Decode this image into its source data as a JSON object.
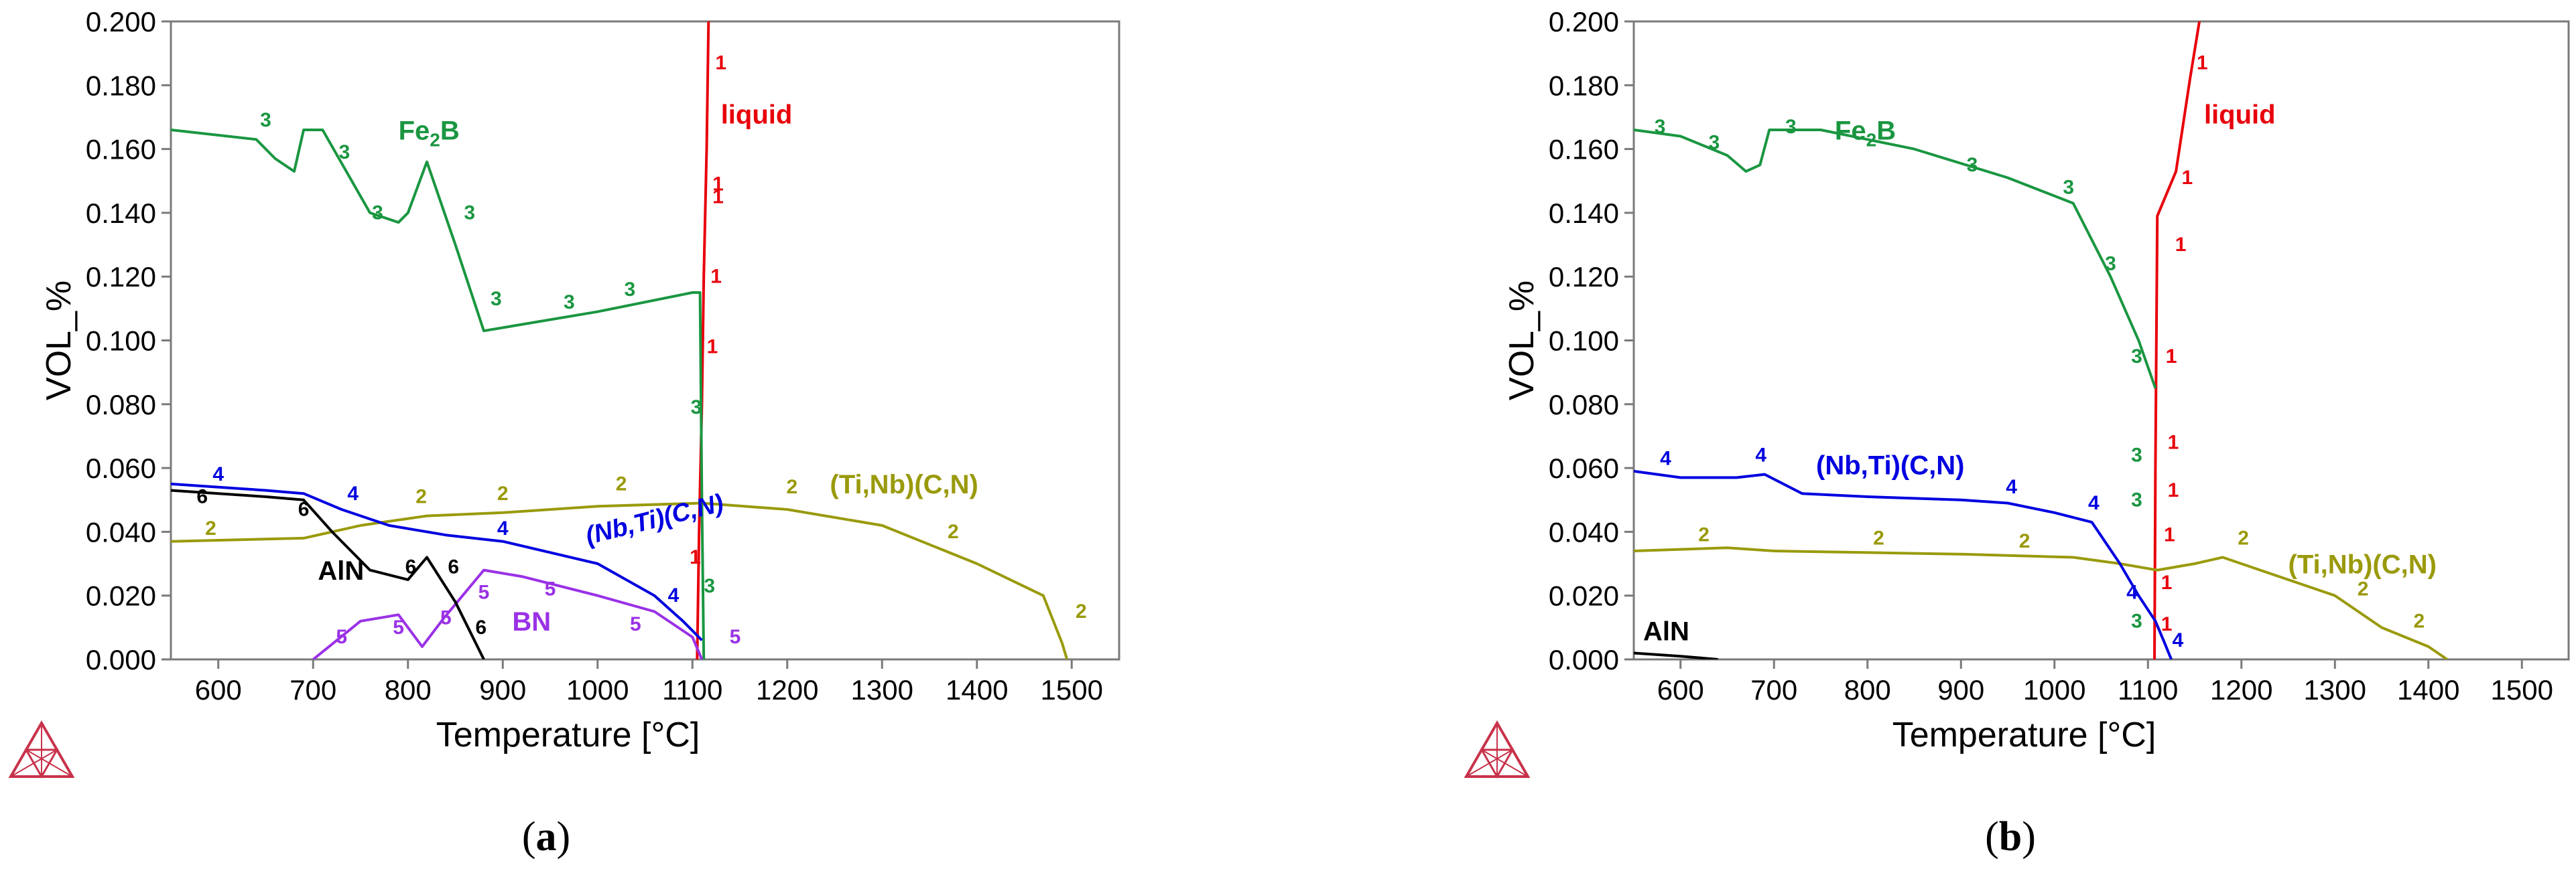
{
  "colors": {
    "liquid": "#e8000b",
    "fe2b": "#1a9641",
    "tinb": "#9a9a0c",
    "nbti": "#0000e0",
    "bn": "#9a31e6",
    "aln": "#000000"
  },
  "logo_icon": "thermo-calc-triangle-icon",
  "chart_data": [
    {
      "type": "line",
      "panel_label": "a",
      "xlabel": "Temperature [°C]",
      "ylabel": "VOL_%",
      "xlim": [
        550,
        1550
      ],
      "ylim": [
        0,
        0.2
      ],
      "x_ticks": [
        600,
        700,
        800,
        900,
        1000,
        1100,
        1200,
        1300,
        1400,
        1500
      ],
      "y_ticks": [
        "0.000",
        "0.020",
        "0.040",
        "0.060",
        "0.080",
        "0.100",
        "0.120",
        "0.140",
        "0.160",
        "0.180",
        "0.200"
      ],
      "series": [
        {
          "id": "liquid",
          "name": "liquid",
          "color": "liquid",
          "marker": "1",
          "name_xy": [
            1130,
            0.168
          ],
          "points": [
            [
              1105,
              0
            ],
            [
              1107,
              0.04
            ],
            [
              1110,
              0.08
            ],
            [
              1112,
              0.12
            ],
            [
              1115,
              0.16
            ],
            [
              1117,
              0.2
            ]
          ],
          "marker_xy": [
            [
              1130,
              0.185
            ],
            [
              1127,
              0.147
            ],
            [
              1127,
              0.143
            ],
            [
              1125,
              0.118
            ],
            [
              1121,
              0.096
            ],
            [
              1103,
              0.03
            ]
          ]
        },
        {
          "id": "fe2b",
          "name": "Fe2B",
          "color": "fe2b",
          "marker": "3",
          "name_xy": [
            790,
            0.163
          ],
          "points": [
            [
              550,
              0.166
            ],
            [
              640,
              0.163
            ],
            [
              660,
              0.157
            ],
            [
              680,
              0.153
            ],
            [
              690,
              0.166
            ],
            [
              710,
              0.166
            ],
            [
              760,
              0.14
            ],
            [
              790,
              0.137
            ],
            [
              800,
              0.14
            ],
            [
              820,
              0.156
            ],
            [
              850,
              0.13
            ],
            [
              880,
              0.103
            ],
            [
              1000,
              0.109
            ],
            [
              1100,
              0.115
            ],
            [
              1108,
              0.115
            ],
            [
              1110,
              0.05
            ],
            [
              1112,
              0
            ]
          ],
          "marker_xy": [
            [
              650,
              0.167
            ],
            [
              733,
              0.157
            ],
            [
              768,
              0.138
            ],
            [
              865,
              0.138
            ],
            [
              893,
              0.111
            ],
            [
              970,
              0.11
            ],
            [
              1034,
              0.114
            ],
            [
              1104,
              0.077
            ],
            [
              1118,
              0.021
            ]
          ]
        },
        {
          "id": "tinb",
          "name": "(Ti,Nb)(C,N)",
          "color": "tinb",
          "marker": "2",
          "name_xy": [
            1245,
            0.052
          ],
          "points": [
            [
              550,
              0.037
            ],
            [
              690,
              0.038
            ],
            [
              750,
              0.042
            ],
            [
              820,
              0.045
            ],
            [
              900,
              0.046
            ],
            [
              1000,
              0.048
            ],
            [
              1110,
              0.049
            ],
            [
              1200,
              0.047
            ],
            [
              1300,
              0.042
            ],
            [
              1400,
              0.03
            ],
            [
              1470,
              0.02
            ],
            [
              1490,
              0.005
            ],
            [
              1495,
              0
            ]
          ],
          "marker_xy": [
            [
              592,
              0.039
            ],
            [
              814,
              0.049
            ],
            [
              900,
              0.05
            ],
            [
              1025,
              0.053
            ],
            [
              1205,
              0.052
            ],
            [
              1375,
              0.038
            ],
            [
              1510,
              0.013
            ]
          ]
        },
        {
          "id": "nbti",
          "name": "(Nb,Ti)(C,N)",
          "color": "nbti",
          "marker": "4",
          "name_xy": [
            990,
            0.036
          ],
          "name_rotate": -14,
          "name_italic": true,
          "points": [
            [
              550,
              0.055
            ],
            [
              650,
              0.053
            ],
            [
              690,
              0.052
            ],
            [
              730,
              0.047
            ],
            [
              780,
              0.042
            ],
            [
              840,
              0.039
            ],
            [
              900,
              0.037
            ],
            [
              1000,
              0.03
            ],
            [
              1060,
              0.02
            ],
            [
              1090,
              0.012
            ],
            [
              1110,
              0.006
            ]
          ],
          "marker_xy": [
            [
              600,
              0.056
            ],
            [
              742,
              0.05
            ],
            [
              900,
              0.039
            ],
            [
              1080,
              0.018
            ]
          ]
        },
        {
          "id": "bn",
          "name": "BN",
          "color": "bn",
          "marker": "5",
          "name_xy": [
            910,
            0.009
          ],
          "points": [
            [
              700,
              0
            ],
            [
              750,
              0.012
            ],
            [
              790,
              0.014
            ],
            [
              815,
              0.004
            ],
            [
              838,
              0.013
            ],
            [
              880,
              0.028
            ],
            [
              920,
              0.026
            ],
            [
              1000,
              0.02
            ],
            [
              1060,
              0.015
            ],
            [
              1100,
              0.007
            ],
            [
              1110,
              0
            ]
          ],
          "marker_xy": [
            [
              730,
              0.005
            ],
            [
              790,
              0.008
            ],
            [
              840,
              0.011
            ],
            [
              880,
              0.019
            ],
            [
              950,
              0.02
            ],
            [
              1040,
              0.009
            ],
            [
              1145,
              0.005
            ]
          ]
        },
        {
          "id": "aln",
          "name": "AlN",
          "color": "aln",
          "marker": "6",
          "name_xy": [
            705,
            0.025
          ],
          "points": [
            [
              550,
              0.053
            ],
            [
              650,
              0.051
            ],
            [
              690,
              0.05
            ],
            [
              720,
              0.04
            ],
            [
              760,
              0.028
            ],
            [
              800,
              0.025
            ],
            [
              820,
              0.032
            ],
            [
              850,
              0.018
            ],
            [
              880,
              0
            ]
          ],
          "marker_xy": [
            [
              583,
              0.049
            ],
            [
              690,
              0.045
            ],
            [
              803,
              0.027
            ],
            [
              848,
              0.027
            ],
            [
              877,
              0.008
            ]
          ]
        }
      ]
    },
    {
      "type": "line",
      "panel_label": "b",
      "xlabel": "Temperature [°C]",
      "ylabel": "VOL_%",
      "xlim": [
        550,
        1550
      ],
      "ylim": [
        0,
        0.2
      ],
      "x_ticks": [
        600,
        700,
        800,
        900,
        1000,
        1100,
        1200,
        1300,
        1400,
        1500
      ],
      "y_ticks": [
        "0.000",
        "0.020",
        "0.040",
        "0.060",
        "0.080",
        "0.100",
        "0.120",
        "0.140",
        "0.160",
        "0.180",
        "0.200"
      ],
      "series": [
        {
          "id": "liquid",
          "name": "liquid",
          "color": "liquid",
          "marker": "1",
          "name_xy": [
            1160,
            0.168
          ],
          "points": [
            [
              1107,
              0
            ],
            [
              1108,
              0.06
            ],
            [
              1110,
              0.139
            ],
            [
              1130,
              0.153
            ],
            [
              1145,
              0.182
            ],
            [
              1155,
              0.2
            ]
          ],
          "marker_xy": [
            [
              1158,
              0.185
            ],
            [
              1142,
              0.149
            ],
            [
              1135,
              0.128
            ],
            [
              1125,
              0.093
            ],
            [
              1125,
              0.093
            ],
            [
              1127,
              0.066
            ],
            [
              1127,
              0.051
            ],
            [
              1123,
              0.037
            ],
            [
              1120,
              0.022
            ],
            [
              1120,
              0.009
            ]
          ],
          "marker_xy_fix": true
        },
        {
          "id": "fe2b",
          "name": "Fe2B",
          "color": "fe2b",
          "marker": "3",
          "name_xy": [
            765,
            0.163
          ],
          "points": [
            [
              550,
              0.166
            ],
            [
              600,
              0.164
            ],
            [
              650,
              0.158
            ],
            [
              670,
              0.153
            ],
            [
              685,
              0.155
            ],
            [
              695,
              0.166
            ],
            [
              750,
              0.166
            ],
            [
              850,
              0.16
            ],
            [
              950,
              0.151
            ],
            [
              1020,
              0.143
            ],
            [
              1060,
              0.12
            ],
            [
              1090,
              0.1
            ],
            [
              1108,
              0.085
            ]
          ],
          "marker_xy": [
            [
              578,
              0.165
            ],
            [
              636,
              0.16
            ],
            [
              718,
              0.165
            ],
            [
              912,
              0.153
            ],
            [
              1015,
              0.146
            ],
            [
              1060,
              0.122
            ],
            [
              1088,
              0.093
            ],
            [
              1088,
              0.062
            ],
            [
              1088,
              0.048
            ],
            [
              1088,
              0.01
            ]
          ]
        },
        {
          "id": "tinb",
          "name": "(Ti,Nb)(C,N)",
          "color": "tinb",
          "marker": "2",
          "name_xy": [
            1250,
            0.027
          ],
          "points": [
            [
              550,
              0.034
            ],
            [
              650,
              0.035
            ],
            [
              700,
              0.034
            ],
            [
              900,
              0.033
            ],
            [
              1020,
              0.032
            ],
            [
              1070,
              0.03
            ],
            [
              1110,
              0.028
            ],
            [
              1150,
              0.03
            ],
            [
              1180,
              0.032
            ],
            [
              1220,
              0.028
            ],
            [
              1300,
              0.02
            ],
            [
              1350,
              0.01
            ],
            [
              1400,
              0.004
            ],
            [
              1420,
              0
            ]
          ],
          "marker_xy": [
            [
              625,
              0.037
            ],
            [
              812,
              0.036
            ],
            [
              968,
              0.035
            ],
            [
              1202,
              0.036
            ],
            [
              1330,
              0.02
            ],
            [
              1390,
              0.01
            ]
          ]
        },
        {
          "id": "nbti",
          "name": "(Nb,Ti)(C,N)",
          "color": "nbti",
          "marker": "4",
          "name_xy": [
            745,
            0.058
          ],
          "points": [
            [
              550,
              0.059
            ],
            [
              600,
              0.057
            ],
            [
              660,
              0.057
            ],
            [
              690,
              0.058
            ],
            [
              730,
              0.052
            ],
            [
              800,
              0.051
            ],
            [
              900,
              0.05
            ],
            [
              950,
              0.049
            ],
            [
              1000,
              0.046
            ],
            [
              1040,
              0.043
            ],
            [
              1070,
              0.03
            ],
            [
              1090,
              0.02
            ],
            [
              1108,
              0.012
            ],
            [
              1118,
              0.005
            ],
            [
              1125,
              0
            ]
          ],
          "marker_xy": [
            [
              584,
              0.061
            ],
            [
              686,
              0.062
            ],
            [
              954,
              0.052
            ],
            [
              1042,
              0.047
            ],
            [
              1083,
              0.019
            ],
            [
              1132,
              0.004
            ]
          ]
        },
        {
          "id": "aln",
          "name": "AlN",
          "color": "aln",
          "marker": "",
          "name_xy": [
            560,
            0.006
          ],
          "points": [
            [
              550,
              0.002
            ],
            [
              600,
              0.001
            ],
            [
              640,
              0
            ]
          ],
          "marker_xy": []
        }
      ]
    }
  ]
}
